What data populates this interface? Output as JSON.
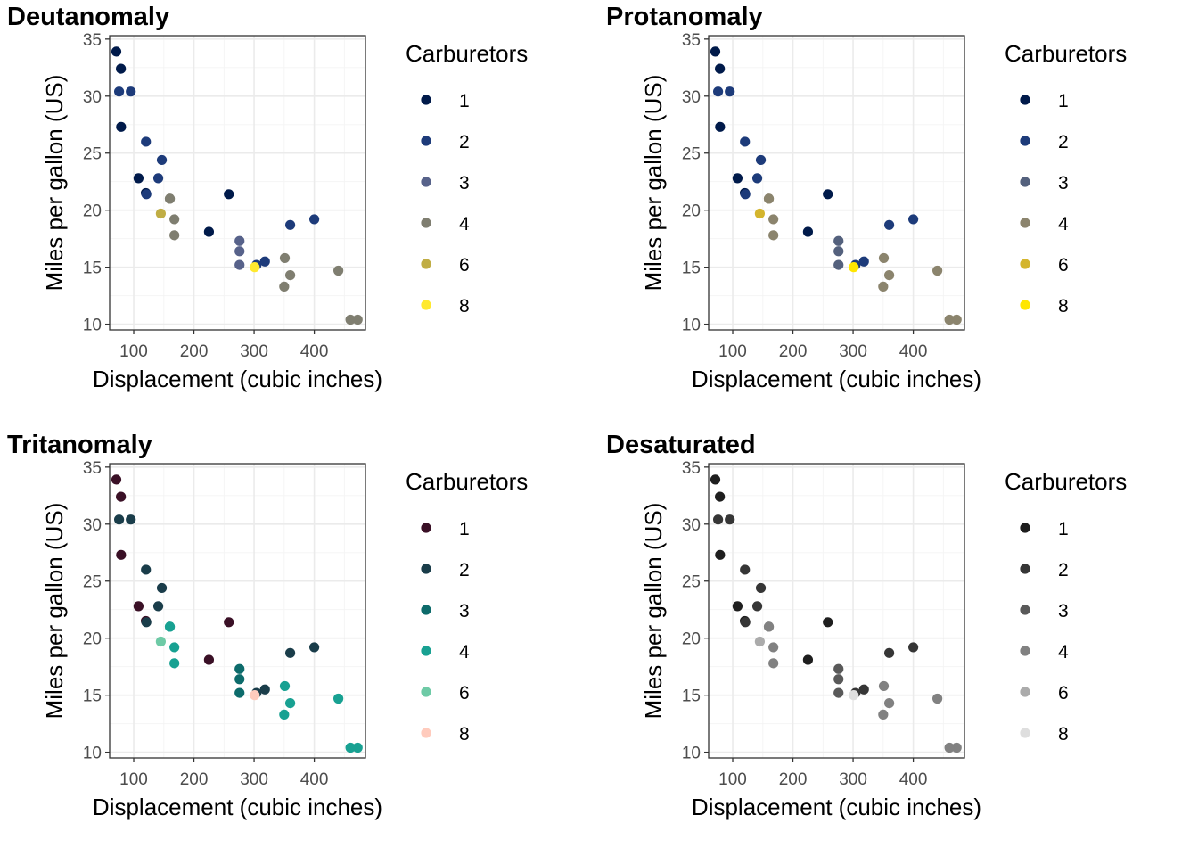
{
  "chart_data": [
    {
      "type": "scatter",
      "title": "Deutanomaly",
      "xlabel": "Displacement (cubic inches)",
      "ylabel": "Miles per gallon (US)",
      "xlim": [
        60,
        485
      ],
      "ylim": [
        9.5,
        35.3
      ],
      "xticks": [
        100,
        200,
        300,
        400
      ],
      "yticks": [
        10,
        15,
        20,
        25,
        30,
        35
      ],
      "grid": true,
      "legend": {
        "title": "Carburetors",
        "position": "right",
        "entries": [
          "1",
          "2",
          "3",
          "4",
          "6",
          "8"
        ]
      },
      "colors": {
        "1": "#001a4a",
        "2": "#1d3b7a",
        "3": "#57628a",
        "4": "#7f7e70",
        "6": "#c0ad44",
        "8": "#ffe92e"
      },
      "series": [
        {
          "name": "1",
          "points": [
            [
              108,
              22.8
            ],
            [
              258,
              21.4
            ],
            [
              225,
              18.1
            ],
            [
              78.7,
              32.4
            ],
            [
              71.1,
              33.9
            ],
            [
              120.1,
              21.5
            ],
            [
              79,
              27.3
            ]
          ]
        },
        {
          "name": "2",
          "points": [
            [
              360,
              18.7
            ],
            [
              146.7,
              24.4
            ],
            [
              140.8,
              22.8
            ],
            [
              75.7,
              30.4
            ],
            [
              318,
              15.5
            ],
            [
              304,
              15.2
            ],
            [
              400,
              19.2
            ],
            [
              120.3,
              26
            ],
            [
              95.1,
              30.4
            ],
            [
              121,
              21.4
            ]
          ]
        },
        {
          "name": "3",
          "points": [
            [
              275.8,
              16.4
            ],
            [
              275.8,
              17.3
            ],
            [
              275.8,
              15.2
            ]
          ]
        },
        {
          "name": "4",
          "points": [
            [
              160,
              21
            ],
            [
              160,
              21
            ],
            [
              360,
              14.3
            ],
            [
              167.6,
              19.2
            ],
            [
              167.6,
              17.8
            ],
            [
              472,
              10.4
            ],
            [
              460,
              10.4
            ],
            [
              440,
              14.7
            ],
            [
              350,
              13.3
            ],
            [
              351,
              15.8
            ]
          ]
        },
        {
          "name": "6",
          "points": [
            [
              145,
              19.7
            ]
          ]
        },
        {
          "name": "8",
          "points": [
            [
              301,
              15
            ]
          ]
        }
      ]
    },
    {
      "type": "scatter",
      "title": "Protanomaly",
      "xlabel": "Displacement (cubic inches)",
      "ylabel": "Miles per gallon (US)",
      "xlim": [
        60,
        485
      ],
      "ylim": [
        9.5,
        35.3
      ],
      "xticks": [
        100,
        200,
        300,
        400
      ],
      "yticks": [
        10,
        15,
        20,
        25,
        30,
        35
      ],
      "grid": true,
      "legend": {
        "title": "Carburetors",
        "position": "right",
        "entries": [
          "1",
          "2",
          "3",
          "4",
          "6",
          "8"
        ]
      },
      "colors": {
        "1": "#001a4a",
        "2": "#1d3b7a",
        "3": "#54617d",
        "4": "#8b846d",
        "6": "#d4b52d",
        "8": "#ffe600"
      },
      "series": [
        {
          "name": "1",
          "points": [
            [
              108,
              22.8
            ],
            [
              258,
              21.4
            ],
            [
              225,
              18.1
            ],
            [
              78.7,
              32.4
            ],
            [
              71.1,
              33.9
            ],
            [
              120.1,
              21.5
            ],
            [
              79,
              27.3
            ]
          ]
        },
        {
          "name": "2",
          "points": [
            [
              360,
              18.7
            ],
            [
              146.7,
              24.4
            ],
            [
              140.8,
              22.8
            ],
            [
              75.7,
              30.4
            ],
            [
              318,
              15.5
            ],
            [
              304,
              15.2
            ],
            [
              400,
              19.2
            ],
            [
              120.3,
              26
            ],
            [
              95.1,
              30.4
            ],
            [
              121,
              21.4
            ]
          ]
        },
        {
          "name": "3",
          "points": [
            [
              275.8,
              16.4
            ],
            [
              275.8,
              17.3
            ],
            [
              275.8,
              15.2
            ]
          ]
        },
        {
          "name": "4",
          "points": [
            [
              160,
              21
            ],
            [
              160,
              21
            ],
            [
              360,
              14.3
            ],
            [
              167.6,
              19.2
            ],
            [
              167.6,
              17.8
            ],
            [
              472,
              10.4
            ],
            [
              460,
              10.4
            ],
            [
              440,
              14.7
            ],
            [
              350,
              13.3
            ],
            [
              351,
              15.8
            ]
          ]
        },
        {
          "name": "6",
          "points": [
            [
              145,
              19.7
            ]
          ]
        },
        {
          "name": "8",
          "points": [
            [
              301,
              15
            ]
          ]
        }
      ]
    },
    {
      "type": "scatter",
      "title": "Tritanomaly",
      "xlabel": "Displacement (cubic inches)",
      "ylabel": "Miles per gallon (US)",
      "xlim": [
        60,
        485
      ],
      "ylim": [
        9.5,
        35.3
      ],
      "xticks": [
        100,
        200,
        300,
        400
      ],
      "yticks": [
        10,
        15,
        20,
        25,
        30,
        35
      ],
      "grid": true,
      "legend": {
        "title": "Carburetors",
        "position": "right",
        "entries": [
          "1",
          "2",
          "3",
          "4",
          "6",
          "8"
        ]
      },
      "colors": {
        "1": "#3a1026",
        "2": "#1a3d4a",
        "3": "#0d6b6b",
        "4": "#18a192",
        "6": "#6ecaa6",
        "8": "#ffcbbd"
      },
      "series": [
        {
          "name": "1",
          "points": [
            [
              108,
              22.8
            ],
            [
              258,
              21.4
            ],
            [
              225,
              18.1
            ],
            [
              78.7,
              32.4
            ],
            [
              71.1,
              33.9
            ],
            [
              120.1,
              21.5
            ],
            [
              79,
              27.3
            ]
          ]
        },
        {
          "name": "2",
          "points": [
            [
              360,
              18.7
            ],
            [
              146.7,
              24.4
            ],
            [
              140.8,
              22.8
            ],
            [
              75.7,
              30.4
            ],
            [
              318,
              15.5
            ],
            [
              304,
              15.2
            ],
            [
              400,
              19.2
            ],
            [
              120.3,
              26
            ],
            [
              95.1,
              30.4
            ],
            [
              121,
              21.4
            ]
          ]
        },
        {
          "name": "3",
          "points": [
            [
              275.8,
              16.4
            ],
            [
              275.8,
              17.3
            ],
            [
              275.8,
              15.2
            ]
          ]
        },
        {
          "name": "4",
          "points": [
            [
              160,
              21
            ],
            [
              160,
              21
            ],
            [
              360,
              14.3
            ],
            [
              167.6,
              19.2
            ],
            [
              167.6,
              17.8
            ],
            [
              472,
              10.4
            ],
            [
              460,
              10.4
            ],
            [
              440,
              14.7
            ],
            [
              350,
              13.3
            ],
            [
              351,
              15.8
            ]
          ]
        },
        {
          "name": "6",
          "points": [
            [
              145,
              19.7
            ]
          ]
        },
        {
          "name": "8",
          "points": [
            [
              301,
              15
            ]
          ]
        }
      ]
    },
    {
      "type": "scatter",
      "title": "Desaturated",
      "xlabel": "Displacement (cubic inches)",
      "ylabel": "Miles per gallon (US)",
      "xlim": [
        60,
        485
      ],
      "ylim": [
        9.5,
        35.3
      ],
      "xticks": [
        100,
        200,
        300,
        400
      ],
      "yticks": [
        10,
        15,
        20,
        25,
        30,
        35
      ],
      "grid": true,
      "legend": {
        "title": "Carburetors",
        "position": "right",
        "entries": [
          "1",
          "2",
          "3",
          "4",
          "6",
          "8"
        ]
      },
      "colors": {
        "1": "#1e1e1e",
        "2": "#363636",
        "3": "#595959",
        "4": "#818181",
        "6": "#ababab",
        "8": "#dedede"
      },
      "series": [
        {
          "name": "1",
          "points": [
            [
              108,
              22.8
            ],
            [
              258,
              21.4
            ],
            [
              225,
              18.1
            ],
            [
              78.7,
              32.4
            ],
            [
              71.1,
              33.9
            ],
            [
              120.1,
              21.5
            ],
            [
              79,
              27.3
            ]
          ]
        },
        {
          "name": "2",
          "points": [
            [
              360,
              18.7
            ],
            [
              146.7,
              24.4
            ],
            [
              140.8,
              22.8
            ],
            [
              75.7,
              30.4
            ],
            [
              318,
              15.5
            ],
            [
              304,
              15.2
            ],
            [
              400,
              19.2
            ],
            [
              120.3,
              26
            ],
            [
              95.1,
              30.4
            ],
            [
              121,
              21.4
            ]
          ]
        },
        {
          "name": "3",
          "points": [
            [
              275.8,
              16.4
            ],
            [
              275.8,
              17.3
            ],
            [
              275.8,
              15.2
            ]
          ]
        },
        {
          "name": "4",
          "points": [
            [
              160,
              21
            ],
            [
              160,
              21
            ],
            [
              360,
              14.3
            ],
            [
              167.6,
              19.2
            ],
            [
              167.6,
              17.8
            ],
            [
              472,
              10.4
            ],
            [
              460,
              10.4
            ],
            [
              440,
              14.7
            ],
            [
              350,
              13.3
            ],
            [
              351,
              15.8
            ]
          ]
        },
        {
          "name": "6",
          "points": [
            [
              145,
              19.7
            ]
          ]
        },
        {
          "name": "8",
          "points": [
            [
              301,
              15
            ]
          ]
        }
      ]
    }
  ]
}
